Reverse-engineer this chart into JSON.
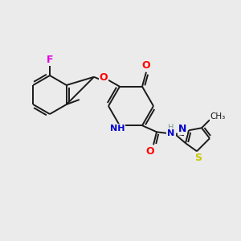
{
  "background_color": "#ebebeb",
  "bond_color": "#1a1a1a",
  "atom_colors": {
    "F": "#e000e0",
    "O": "#ff0000",
    "N": "#0000cc",
    "S": "#c8c800",
    "C": "#1a1a1a",
    "H": "#7a9a9a"
  },
  "figsize": [
    3.0,
    3.0
  ],
  "dpi": 100
}
